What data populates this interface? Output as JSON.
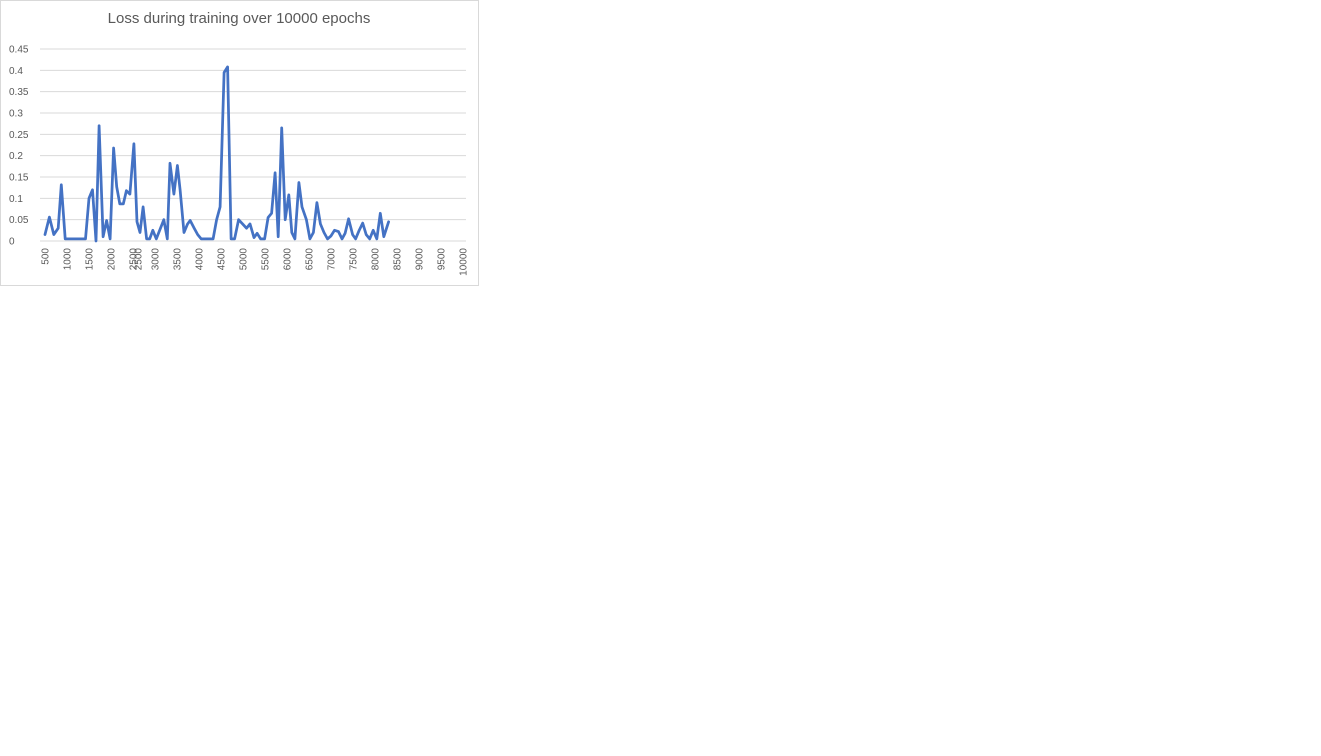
{
  "chart_data": {
    "type": "line",
    "title": "Loss during training over 10000 epochs",
    "xlabel": "",
    "ylabel": "",
    "ylim": [
      0,
      0.45
    ],
    "y_ticks": [
      "0",
      "0.05",
      "0.1",
      "0.15",
      "0.2",
      "0.25",
      "0.3",
      "0.35",
      "0.4",
      "0.45"
    ],
    "x_ticks": [
      "500",
      "1000",
      "1500",
      "2000",
      "2500",
      "3000",
      "3500",
      "4000",
      "4500",
      "5000",
      "5500",
      "6000",
      "6500",
      "7000",
      "7500",
      "8000",
      "8500",
      "9000",
      "9500",
      "10000"
    ],
    "x_tick_overlap_label": "2500",
    "grid": true,
    "legend": "none",
    "series": [
      {
        "color": "#4472C4",
        "points": [
          [
            500,
            0.015
          ],
          [
            600,
            0.056
          ],
          [
            700,
            0.015
          ],
          [
            800,
            0.03
          ],
          [
            870,
            0.132
          ],
          [
            960,
            0.005
          ],
          [
            1100,
            0.005
          ],
          [
            1300,
            0.005
          ],
          [
            1420,
            0.005
          ],
          [
            1500,
            0.1
          ],
          [
            1580,
            0.12
          ],
          [
            1660,
            0.0
          ],
          [
            1730,
            0.27
          ],
          [
            1820,
            0.01
          ],
          [
            1900,
            0.048
          ],
          [
            1980,
            0.005
          ],
          [
            2060,
            0.218
          ],
          [
            2130,
            0.127
          ],
          [
            2200,
            0.087
          ],
          [
            2280,
            0.087
          ],
          [
            2350,
            0.118
          ],
          [
            2430,
            0.11
          ],
          [
            2520,
            0.228
          ],
          [
            2590,
            0.045
          ],
          [
            2660,
            0.02
          ],
          [
            2730,
            0.08
          ],
          [
            2810,
            0.005
          ],
          [
            2880,
            0.005
          ],
          [
            2950,
            0.025
          ],
          [
            3030,
            0.005
          ],
          [
            3200,
            0.05
          ],
          [
            3280,
            0.005
          ],
          [
            3340,
            0.182
          ],
          [
            3430,
            0.11
          ],
          [
            3510,
            0.177
          ],
          [
            3570,
            0.12
          ],
          [
            3660,
            0.02
          ],
          [
            3740,
            0.04
          ],
          [
            3800,
            0.048
          ],
          [
            3890,
            0.03
          ],
          [
            3970,
            0.015
          ],
          [
            4050,
            0.005
          ],
          [
            4200,
            0.005
          ],
          [
            4320,
            0.005
          ],
          [
            4400,
            0.05
          ],
          [
            4480,
            0.08
          ],
          [
            4570,
            0.395
          ],
          [
            4650,
            0.408
          ],
          [
            4730,
            0.005
          ],
          [
            4810,
            0.005
          ],
          [
            4900,
            0.05
          ],
          [
            4990,
            0.04
          ],
          [
            5080,
            0.03
          ],
          [
            5160,
            0.04
          ],
          [
            5250,
            0.008
          ],
          [
            5320,
            0.018
          ],
          [
            5400,
            0.005
          ],
          [
            5490,
            0.005
          ],
          [
            5570,
            0.055
          ],
          [
            5650,
            0.065
          ],
          [
            5730,
            0.16
          ],
          [
            5800,
            0.01
          ],
          [
            5880,
            0.265
          ],
          [
            5960,
            0.05
          ],
          [
            6040,
            0.108
          ],
          [
            6110,
            0.02
          ],
          [
            6180,
            0.005
          ],
          [
            6270,
            0.137
          ],
          [
            6340,
            0.08
          ],
          [
            6440,
            0.05
          ],
          [
            6520,
            0.005
          ],
          [
            6600,
            0.02
          ],
          [
            6680,
            0.09
          ],
          [
            6760,
            0.04
          ],
          [
            6840,
            0.02
          ],
          [
            6920,
            0.005
          ],
          [
            7000,
            0.012
          ],
          [
            7080,
            0.025
          ],
          [
            7170,
            0.022
          ],
          [
            7250,
            0.005
          ],
          [
            7320,
            0.018
          ],
          [
            7400,
            0.052
          ],
          [
            7490,
            0.015
          ],
          [
            7560,
            0.005
          ],
          [
            7640,
            0.025
          ],
          [
            7720,
            0.042
          ],
          [
            7800,
            0.015
          ],
          [
            7880,
            0.005
          ],
          [
            7960,
            0.025
          ],
          [
            8040,
            0.005
          ],
          [
            8120,
            0.065
          ],
          [
            8200,
            0.01
          ],
          [
            8310,
            0.045
          ]
        ]
      }
    ]
  }
}
